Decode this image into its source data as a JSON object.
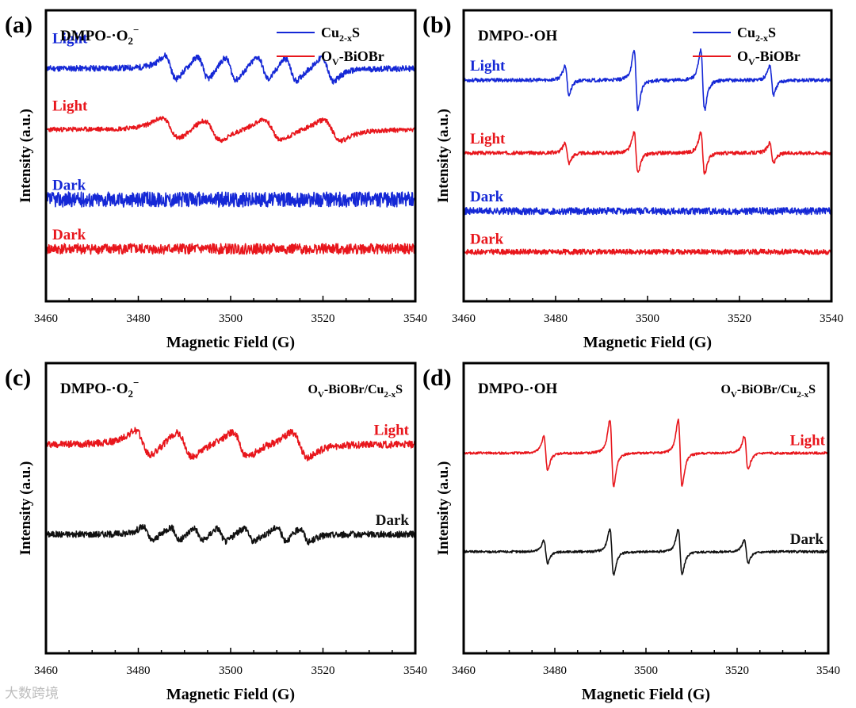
{
  "colors": {
    "blue": "#1528d6",
    "red": "#e8161c",
    "black": "#111111"
  },
  "watermark": "大数跨境",
  "chart_data": [
    {
      "panel": "(a)",
      "type": "line",
      "species": "DMPO-·O2⁻",
      "species_main": "DMPO-·O",
      "species_sub": "2",
      "species_sup": "−",
      "xlabel": "Magnetic Field (G)",
      "ylabel": "Intensity (a.u.)",
      "xlim": [
        3460,
        3540
      ],
      "xticks": [
        3460,
        3480,
        3500,
        3520,
        3540
      ],
      "ylim": [
        -5,
        45
      ],
      "legend": [
        {
          "main": "Cu",
          "sub": "2-x",
          "tail": "S",
          "color": "blue"
        },
        {
          "main": "O",
          "sub": "V",
          "tail": "-BiOBr",
          "color": "red"
        }
      ],
      "series": [
        {
          "name": "Cu2-xS Light",
          "label": "Light",
          "color": "blue",
          "kind": "superoxide",
          "offset": 35,
          "amp": 3.2,
          "noise": 0.5,
          "seed": 11
        },
        {
          "name": "Ov-BiOBr Light",
          "label": "Light",
          "color": "red",
          "kind": "superoxide_broad",
          "offset": 24.5,
          "amp": 2.8,
          "noise": 0.4,
          "seed": 23
        },
        {
          "name": "Cu2-xS Dark",
          "label": "Dark",
          "color": "blue",
          "kind": "flat",
          "offset": 12.5,
          "amp": 0,
          "noise": 1.3,
          "seed": 37
        },
        {
          "name": "Ov-BiOBr Dark",
          "label": "Dark",
          "color": "red",
          "kind": "flat",
          "offset": 4,
          "amp": 0,
          "noise": 0.9,
          "seed": 41
        }
      ]
    },
    {
      "panel": "(b)",
      "type": "line",
      "species": "DMPO-·OH",
      "species_main": "DMPO-·OH",
      "species_sub": "",
      "species_sup": "",
      "xlabel": "Magnetic Field (G)",
      "ylabel": "Intensity (a.u.)",
      "xlim": [
        3460,
        3540
      ],
      "xticks": [
        3460,
        3480,
        3500,
        3520,
        3540
      ],
      "ylim": [
        -5,
        45
      ],
      "legend": [
        {
          "main": "Cu",
          "sub": "2-x",
          "tail": "S",
          "color": "blue"
        },
        {
          "main": "O",
          "sub": "V",
          "tail": "-BiOBr",
          "color": "red"
        }
      ],
      "series": [
        {
          "name": "Cu2-xS Light",
          "label": "Light",
          "color": "blue",
          "kind": "hydroxyl",
          "offset": 33,
          "amp": 6.5,
          "noise": 0.3,
          "seed": 53
        },
        {
          "name": "Ov-BiOBr Light",
          "label": "Light",
          "color": "red",
          "kind": "hydroxyl",
          "offset": 20.5,
          "amp": 4.5,
          "noise": 0.3,
          "seed": 67
        },
        {
          "name": "Cu2-xS Dark",
          "label": "Dark",
          "color": "blue",
          "kind": "flat",
          "offset": 10.5,
          "amp": 0,
          "noise": 0.6,
          "seed": 71
        },
        {
          "name": "Ov-BiOBr Dark",
          "label": "Dark",
          "color": "red",
          "kind": "flat",
          "offset": 3.5,
          "amp": 0,
          "noise": 0.45,
          "seed": 83
        }
      ]
    },
    {
      "panel": "(c)",
      "type": "line",
      "species": "DMPO-·O2⁻",
      "species_main": "DMPO-·O",
      "species_sub": "2",
      "species_sup": "−",
      "xlabel": "Magnetic Field (G)",
      "ylabel": "Intensity (a.u.)",
      "xlim": [
        3460,
        3540
      ],
      "xticks": [
        3460,
        3480,
        3500,
        3520,
        3540
      ],
      "ylim": [
        -5,
        45
      ],
      "legend_text": {
        "main": "O",
        "sub": "V",
        "mid": "-BiOBr/Cu",
        "sub2": "2-x",
        "tail": "S"
      },
      "series": [
        {
          "name": "Ov-BiOBr/Cu2-xS Light",
          "label": "Light",
          "color": "red",
          "kind": "superoxide_c",
          "offset": 31,
          "amp": 3.4,
          "noise": 0.6,
          "seed": 97
        },
        {
          "name": "Ov-BiOBr/Cu2-xS Dark",
          "label": "Dark",
          "color": "black",
          "kind": "superoxide_c_weak",
          "offset": 15.5,
          "amp": 1.9,
          "noise": 0.55,
          "seed": 101
        }
      ]
    },
    {
      "panel": "(d)",
      "type": "line",
      "species": "DMPO-·OH",
      "species_main": "DMPO-·OH",
      "species_sub": "",
      "species_sup": "",
      "xlabel": "Magnetic Field (G)",
      "ylabel": "Intensity (a.u.)",
      "xlim": [
        3460,
        3540
      ],
      "xticks": [
        3460,
        3480,
        3500,
        3520,
        3540
      ],
      "ylim": [
        -5,
        45
      ],
      "legend_text": {
        "main": "O",
        "sub": "V",
        "mid": "-BiOBr/Cu",
        "sub2": "2-x",
        "tail": "S"
      },
      "series": [
        {
          "name": "Ov-BiOBr/Cu2-xS Light",
          "label": "Light",
          "color": "red",
          "kind": "hydroxyl_d",
          "offset": 29.5,
          "amp": 8,
          "noise": 0.2,
          "seed": 113
        },
        {
          "name": "Ov-BiOBr/Cu2-xS Dark",
          "label": "Dark",
          "color": "black",
          "kind": "hydroxyl_d",
          "offset": 12.5,
          "amp": 5.5,
          "noise": 0.2,
          "seed": 127
        }
      ]
    }
  ]
}
